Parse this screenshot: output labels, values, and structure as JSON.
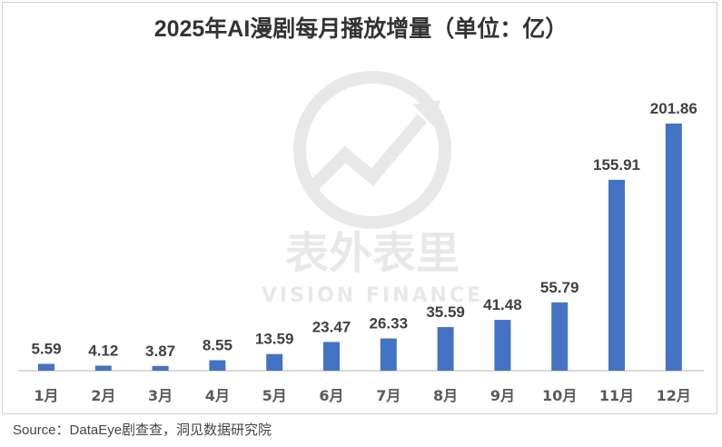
{
  "chart_data": {
    "type": "bar",
    "title": "2025年AI漫剧每月播放增量（单位：亿）",
    "categories": [
      "1月",
      "2月",
      "3月",
      "4月",
      "5月",
      "6月",
      "7月",
      "8月",
      "9月",
      "10月",
      "11月",
      "12月"
    ],
    "values": [
      5.59,
      4.12,
      3.87,
      8.55,
      13.59,
      23.47,
      26.33,
      35.59,
      41.48,
      55.79,
      155.91,
      201.86
    ],
    "data_labels": [
      "5.59",
      "4.12",
      "3.87",
      "8.55",
      "13.59",
      "23.47",
      "26.33",
      "35.59",
      "41.48",
      "55.79",
      "155.91",
      "201.86"
    ],
    "xlabel": "",
    "ylabel": "",
    "ylim": [
      0,
      210
    ],
    "grid": false,
    "bar_color": "#4472C4"
  },
  "source": "Source：DataEye剧查查，洞见数据研究院",
  "watermark": {
    "text_cn": "表外表里",
    "text_en": "VISION FINANCE"
  }
}
